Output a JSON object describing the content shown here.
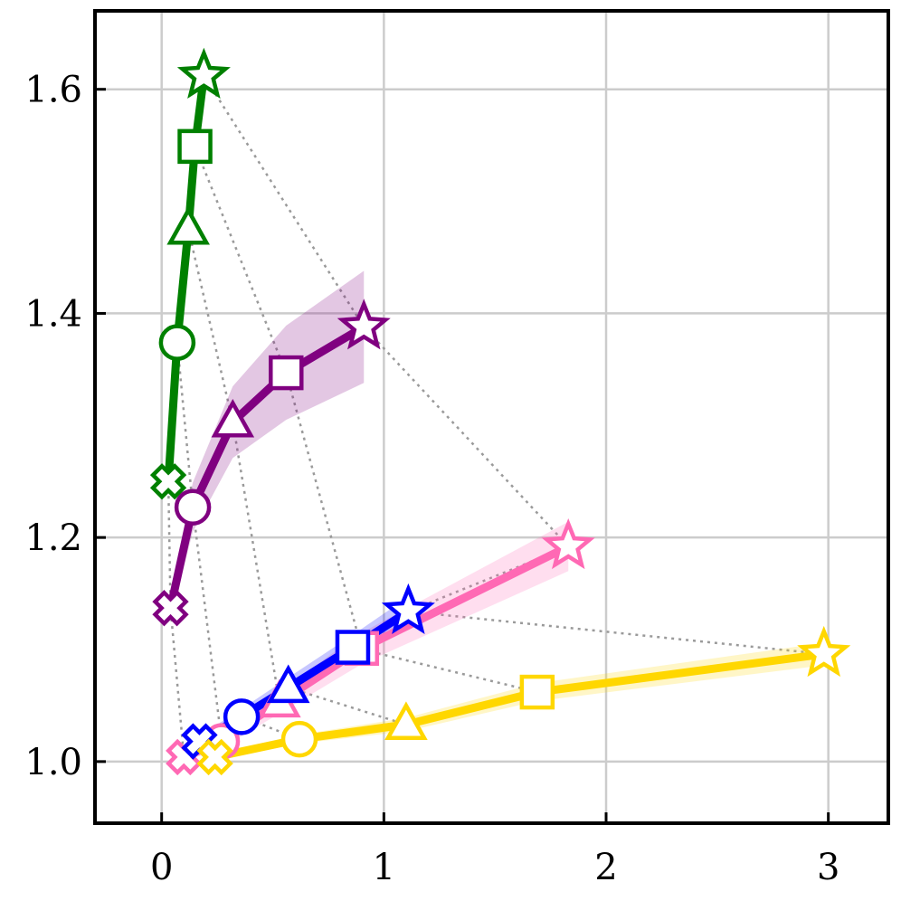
{
  "chart_data": {
    "type": "line",
    "title": "",
    "xlabel": "",
    "ylabel": "",
    "xlim": [
      -0.3,
      3.27
    ],
    "ylim": [
      0.945,
      1.67
    ],
    "xticks": [
      0,
      1,
      2,
      3
    ],
    "xtick_labels": [
      "0",
      "1",
      "2",
      "3"
    ],
    "yticks": [
      1.0,
      1.2,
      1.4,
      1.6
    ],
    "ytick_labels": [
      "1.0",
      "1.2",
      "1.4",
      "1.6"
    ],
    "grid": true,
    "marker_order": [
      "cross",
      "circle",
      "triangle",
      "square",
      "star"
    ],
    "series": [
      {
        "color": "#008000",
        "x": [
          0.03,
          0.07,
          0.12,
          0.15,
          0.19
        ],
        "y": [
          1.25,
          1.374,
          1.475,
          1.549,
          1.612
        ],
        "band": [
          0.005,
          0.005,
          0.005,
          0.005,
          0.005
        ]
      },
      {
        "color": "#800080",
        "x": [
          0.04,
          0.14,
          0.32,
          0.56,
          0.91
        ],
        "y": [
          1.137,
          1.227,
          1.303,
          1.347,
          1.388
        ],
        "band": [
          0.01,
          0.022,
          0.032,
          0.042,
          0.05
        ]
      },
      {
        "color": "#FF69B4",
        "x": [
          0.1,
          0.27,
          0.53,
          0.9,
          1.83
        ],
        "y": [
          1.004,
          1.018,
          1.053,
          1.101,
          1.192
        ],
        "band": [
          0.004,
          0.006,
          0.01,
          0.014,
          0.022
        ]
      },
      {
        "color": "#0000FF",
        "x": [
          0.17,
          0.36,
          0.57,
          0.86,
          1.11
        ],
        "y": [
          1.018,
          1.04,
          1.066,
          1.102,
          1.134
        ],
        "band": [
          0.005,
          0.007,
          0.009,
          0.011,
          0.013
        ]
      },
      {
        "color": "#FFD700",
        "x": [
          0.24,
          0.62,
          1.1,
          1.69,
          2.98
        ],
        "y": [
          1.004,
          1.02,
          1.033,
          1.062,
          1.096
        ],
        "band": [
          0.003,
          0.004,
          0.006,
          0.008,
          0.01
        ]
      }
    ],
    "connector_style": "dotted-gray"
  }
}
